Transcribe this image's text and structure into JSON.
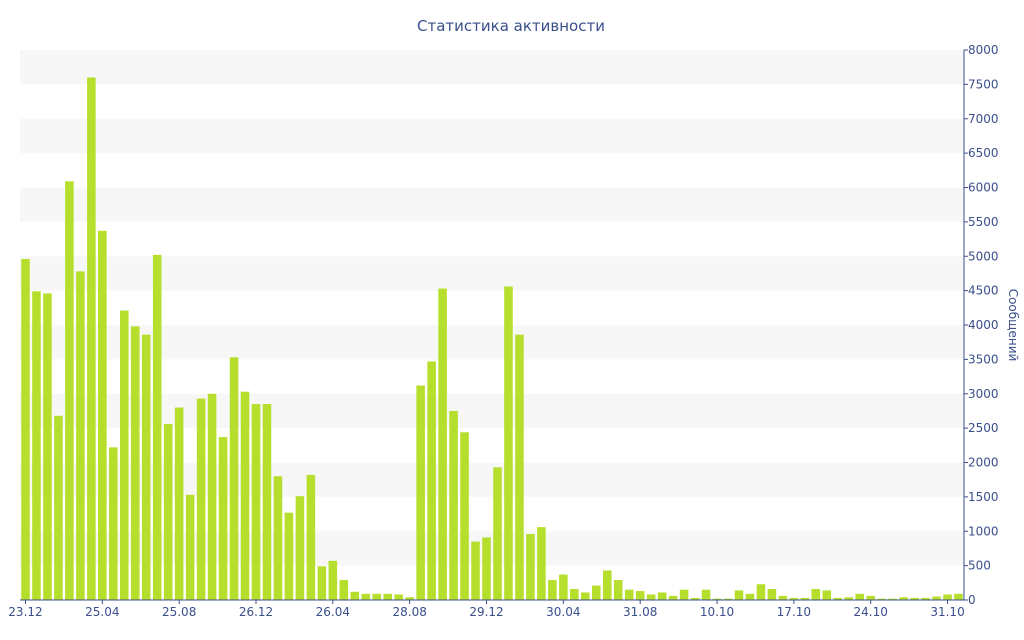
{
  "chart_data": {
    "type": "bar",
    "title": "Статистика активности",
    "xlabel": "",
    "ylabel": "Сообщений",
    "ylim": [
      0,
      8000
    ],
    "y_axis_side": "right",
    "grid": "alternating horizontal bands",
    "bar_color": "#b6df2d",
    "x_tick_labels": [
      "23.12",
      "25.04",
      "25.08",
      "26.12",
      "26.04",
      "28.08",
      "29.12",
      "30.04",
      "31.08",
      "10.10",
      "17.10",
      "24.10",
      "31.10"
    ],
    "x_tick_indices": [
      0,
      7,
      14,
      21,
      28,
      35,
      42,
      49,
      56,
      63,
      70,
      77,
      84
    ],
    "values": [
      4960,
      4490,
      4460,
      2680,
      6090,
      4780,
      7600,
      5370,
      2220,
      4210,
      3980,
      3860,
      5020,
      2560,
      2800,
      1530,
      2930,
      3000,
      2370,
      3530,
      3030,
      2850,
      2850,
      1800,
      1270,
      1510,
      1820,
      490,
      570,
      290,
      120,
      90,
      90,
      90,
      80,
      40,
      3120,
      3470,
      4530,
      2750,
      2440,
      850,
      910,
      1930,
      4560,
      3860,
      960,
      1060,
      290,
      370,
      160,
      110,
      210,
      430,
      290,
      150,
      130,
      80,
      110,
      60,
      150,
      30,
      150,
      20,
      20,
      140,
      90,
      230,
      160,
      60,
      30,
      30,
      160,
      140,
      30,
      40,
      90,
      60,
      20,
      20,
      40,
      30,
      30,
      50,
      80,
      90
    ]
  }
}
